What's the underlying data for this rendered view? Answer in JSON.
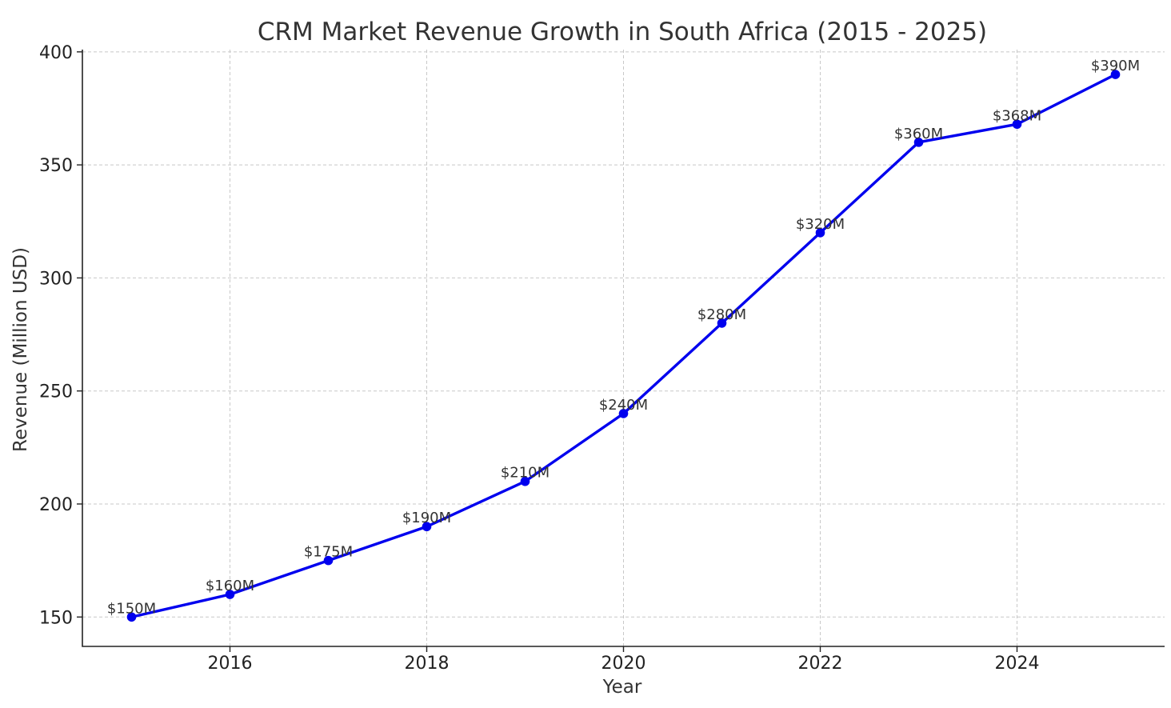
{
  "chart_data": {
    "type": "line",
    "title": "CRM Market Revenue Growth in South Africa (2015 - 2025)",
    "xlabel": "Year",
    "ylabel": "Revenue (Million USD)",
    "x": [
      2015,
      2016,
      2017,
      2018,
      2019,
      2020,
      2021,
      2022,
      2023,
      2024,
      2025
    ],
    "series": [
      {
        "values": [
          150,
          160,
          175,
          190,
          210,
          240,
          280,
          320,
          360,
          368,
          390
        ],
        "color": "#0000ee",
        "marker": "circle"
      }
    ],
    "data_labels": [
      "$150M",
      "$160M",
      "$175M",
      "$190M",
      "$210M",
      "$240M",
      "$280M",
      "$320M",
      "$360M",
      "$368M",
      "$390M"
    ],
    "xticks": [
      2016,
      2018,
      2020,
      2022,
      2024
    ],
    "yticks": [
      150,
      200,
      250,
      300,
      350,
      400
    ],
    "xlim": [
      2014.5,
      2025.5
    ],
    "ylim": [
      137,
      401
    ],
    "grid": true
  }
}
